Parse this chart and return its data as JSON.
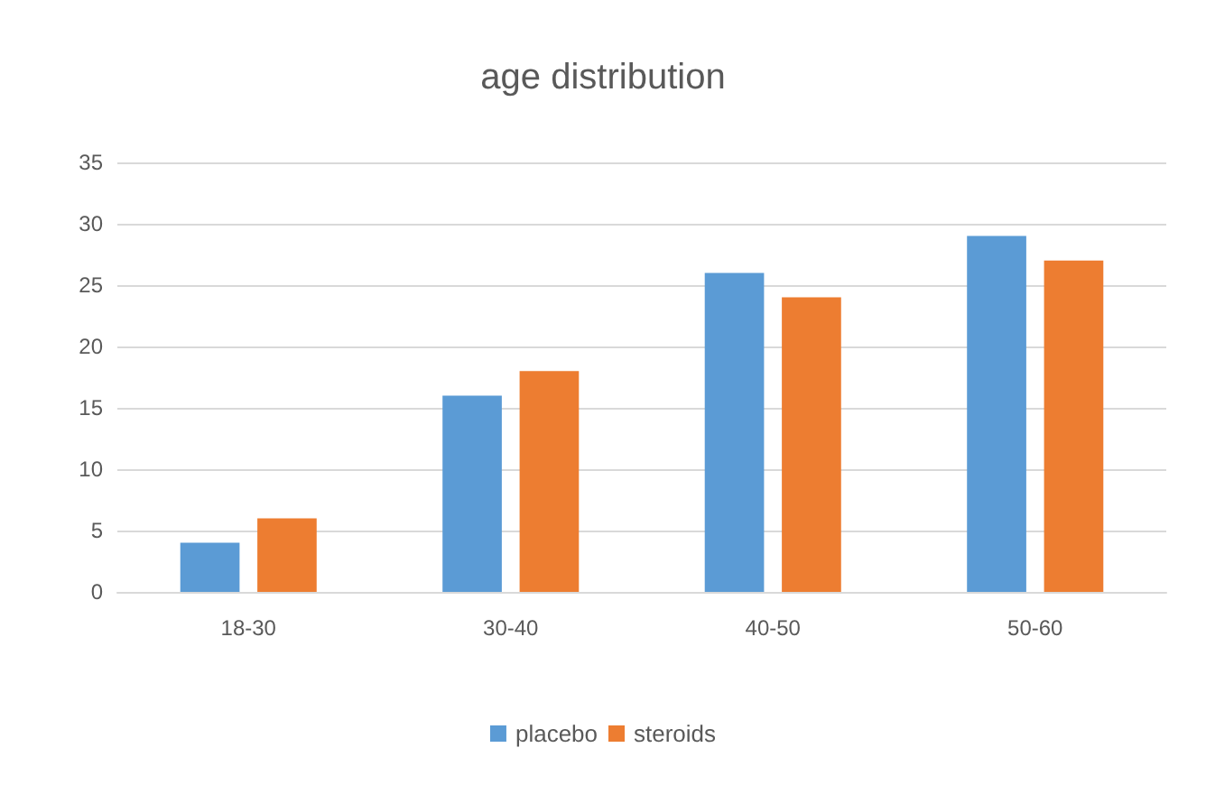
{
  "chart_data": {
    "type": "bar",
    "title": "age distribution",
    "categories": [
      "18-30",
      "30-40",
      "40-50",
      "50-60"
    ],
    "series": [
      {
        "name": "placebo",
        "color": "#5b9bd5",
        "values": [
          4,
          16,
          26,
          29
        ]
      },
      {
        "name": "steroids",
        "color": "#ed7d31",
        "values": [
          6,
          18,
          24,
          27
        ]
      }
    ],
    "ylim": [
      0,
      35
    ],
    "yticks": [
      0,
      5,
      10,
      15,
      20,
      25,
      30,
      35
    ],
    "grid": "y",
    "legend": "bottom"
  }
}
